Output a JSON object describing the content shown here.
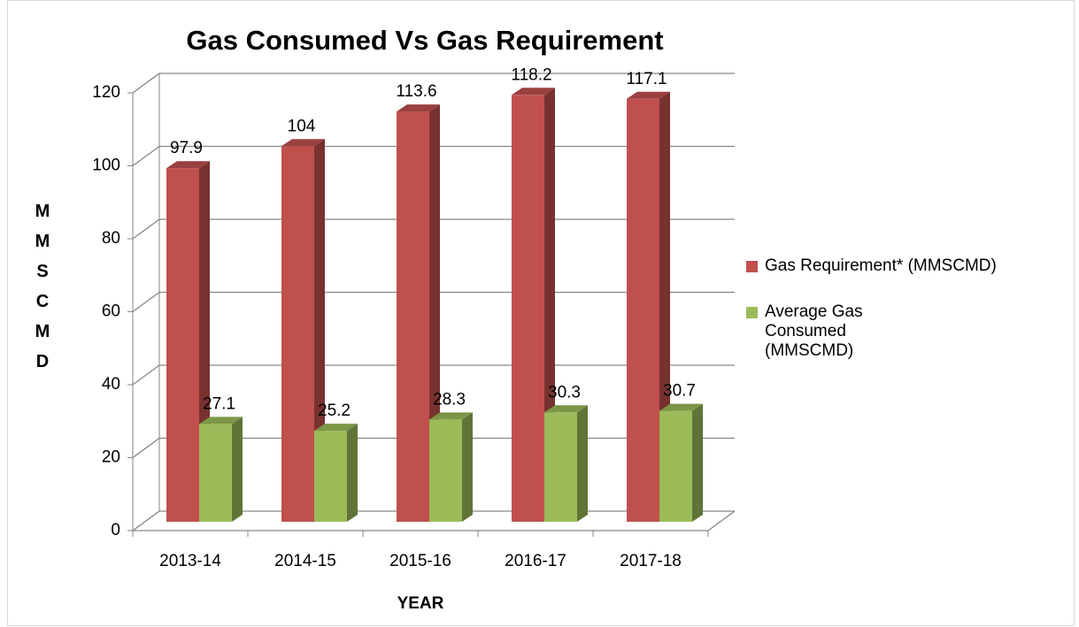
{
  "chart_data": {
    "type": "bar3d",
    "title": "Gas Consumed Vs Gas Requirement",
    "x_label": "YEAR",
    "y_label": "MMSCMD",
    "categories": [
      "2013-14",
      "2014-15",
      "2015-16",
      "2016-17",
      "2017-18"
    ],
    "series": [
      {
        "name": "Gas Requirement* (MMSCMD)",
        "color": "#c0504d",
        "values": [
          97.9,
          104,
          113.6,
          118.2,
          117.1
        ]
      },
      {
        "name": "Average Gas Consumed (MMSCMD)",
        "color": "#9bbb59",
        "values": [
          27.1,
          25.2,
          28.3,
          30.3,
          30.7
        ]
      }
    ],
    "ylim": [
      0,
      120
    ],
    "yticks": [
      0,
      20,
      40,
      60,
      80,
      100,
      120
    ],
    "grid": true,
    "legend": "right"
  }
}
